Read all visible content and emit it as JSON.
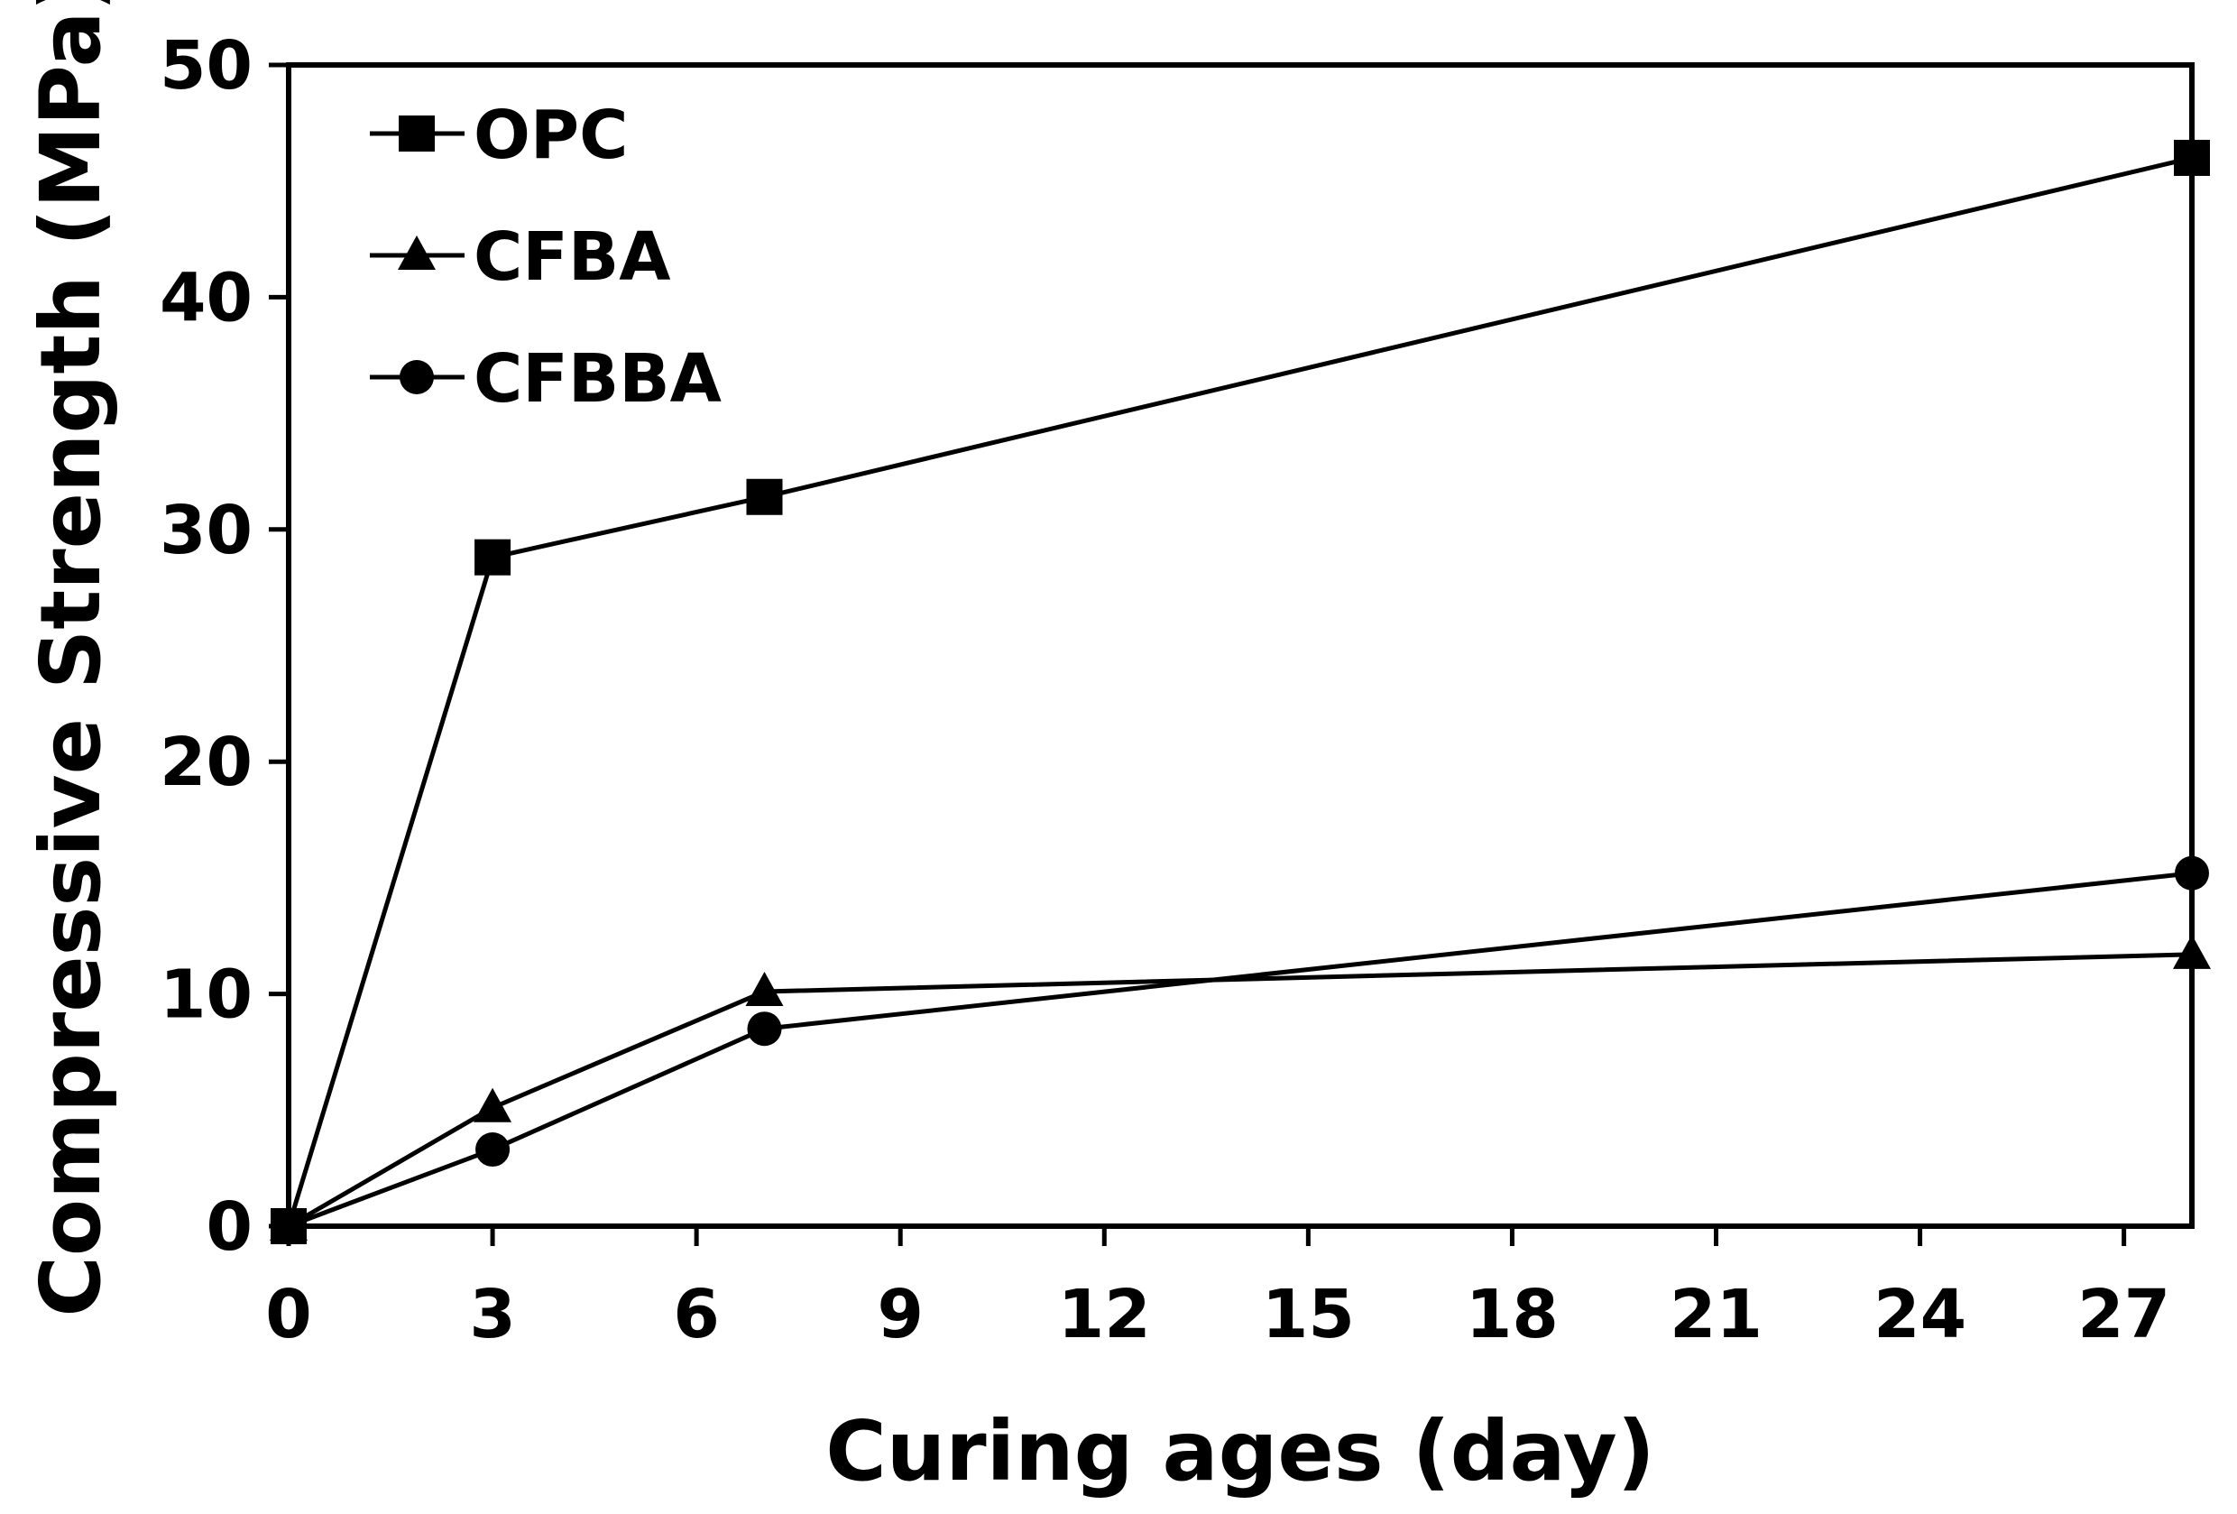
{
  "chart_data": {
    "type": "line",
    "title": "",
    "xlabel": "Curing ages (day)",
    "ylabel": "Compressive Strength (MPa)",
    "xlim": [
      0,
      28
    ],
    "ylim": [
      0,
      50
    ],
    "xticks": [
      0,
      3,
      6,
      9,
      12,
      15,
      18,
      21,
      24,
      27
    ],
    "yticks": [
      0,
      10,
      20,
      30,
      40,
      50
    ],
    "grid": false,
    "legend_position": "top-left",
    "series": [
      {
        "name": "OPC",
        "marker": "square",
        "x": [
          0,
          3,
          7,
          28
        ],
        "y": [
          0,
          28.8,
          31.4,
          46.0
        ]
      },
      {
        "name": "CFBA",
        "marker": "triangle",
        "x": [
          0,
          3,
          7,
          28
        ],
        "y": [
          0,
          5.1,
          10.1,
          11.7
        ]
      },
      {
        "name": "CFBBA",
        "marker": "circle",
        "x": [
          0,
          3,
          7,
          28
        ],
        "y": [
          0,
          3.3,
          8.5,
          15.2
        ]
      }
    ]
  }
}
